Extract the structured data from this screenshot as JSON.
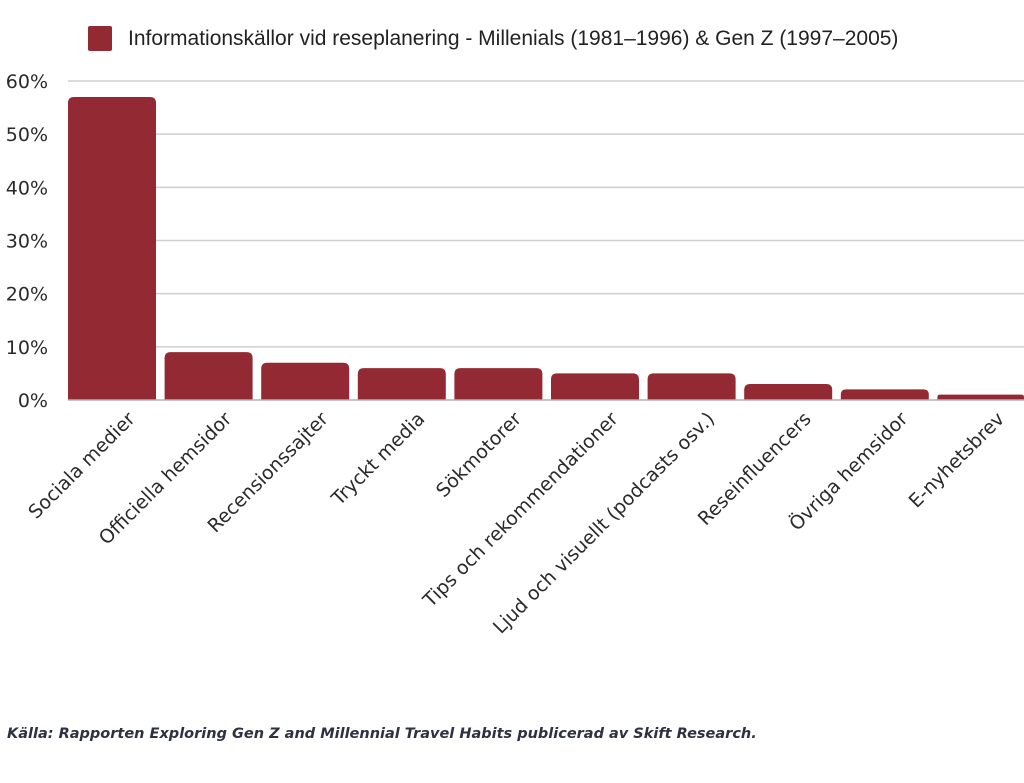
{
  "chart_data": {
    "type": "bar",
    "title": "",
    "legend": {
      "position": "top",
      "entries": [
        "Informationskällor vid reseplanering - Millenials (1981–1996) & Gen Z (1997–2005)"
      ]
    },
    "categories": [
      "Sociala medier",
      "Officiella hemsidor",
      "Recensionssajter",
      "Tryckt media",
      "Sökmotorer",
      "Tips och rekommendationer",
      "Ljud och visuellt (podcasts osv.)",
      "Reseinfluencers",
      "Övriga hemsidor",
      "E-nyhetsbrev"
    ],
    "series": [
      {
        "name": "Informationskällor vid reseplanering - Millenials (1981–1996) & Gen Z (1997–2005)",
        "values": [
          57,
          9,
          7,
          6,
          6,
          5,
          5,
          3,
          2,
          1
        ],
        "color": "#932a33"
      }
    ],
    "yticks": [
      "0%",
      "10%",
      "20%",
      "30%",
      "40%",
      "50%",
      "60%"
    ],
    "ylim": [
      0,
      60
    ],
    "xlabel": "",
    "ylabel": "",
    "grid": true
  },
  "source": "Källa: Rapporten Exploring Gen Z and Millennial Travel Habits publicerad av Skift Research."
}
